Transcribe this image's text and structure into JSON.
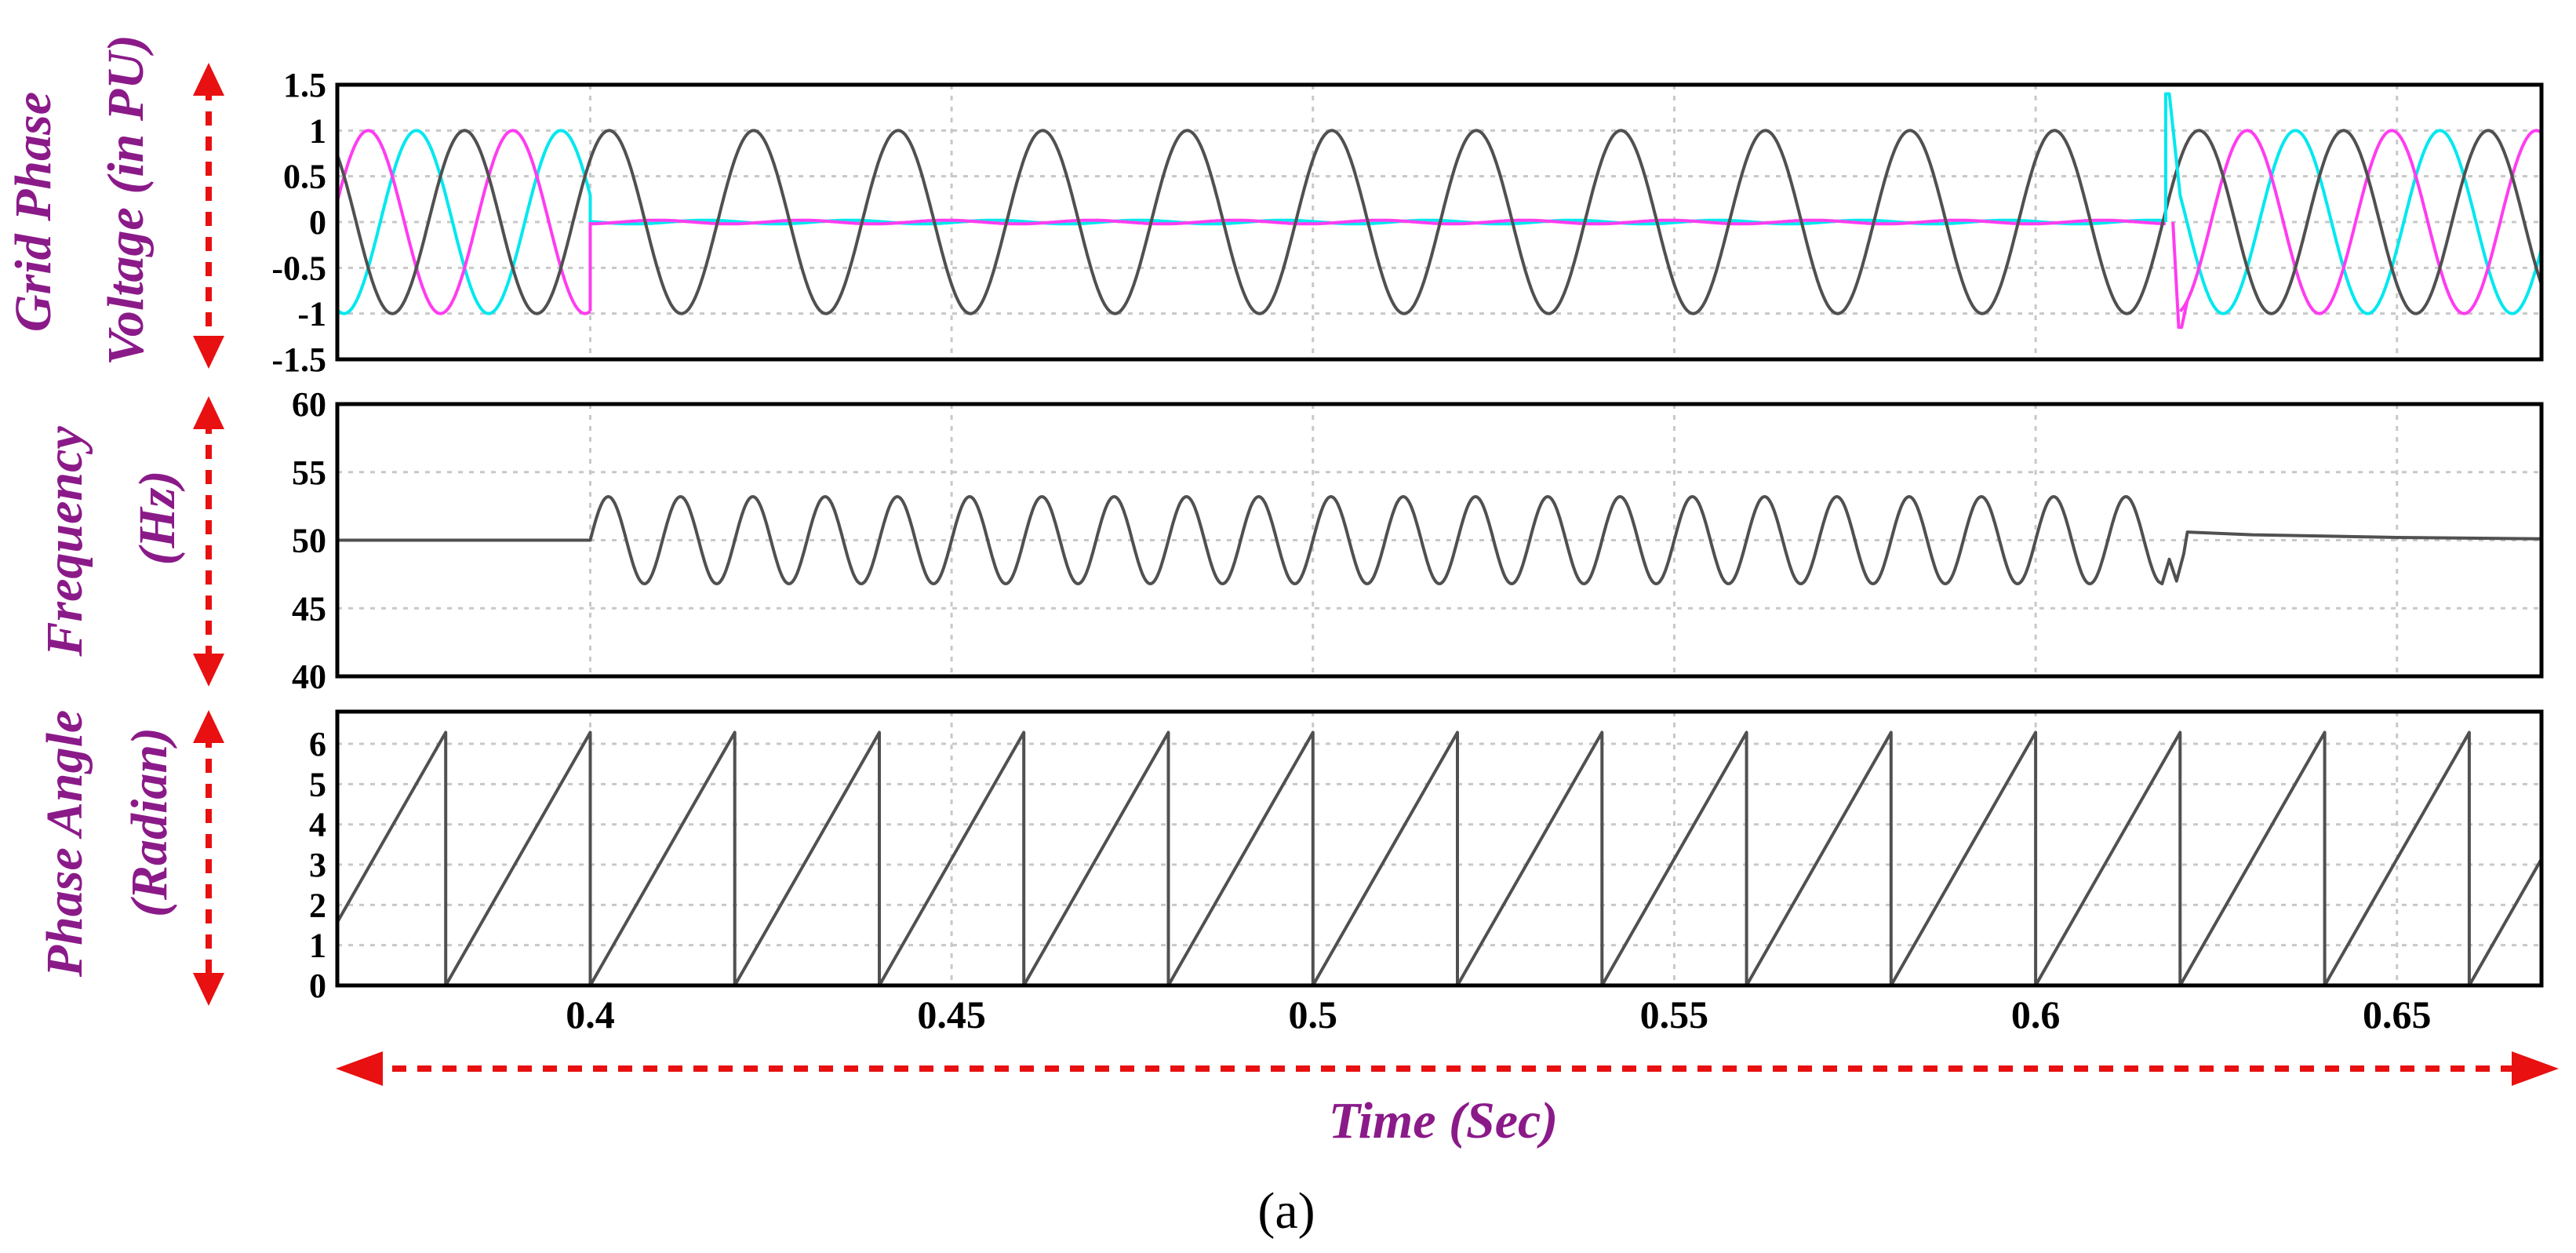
{
  "figure": {
    "caption": "(a)",
    "xlabel": "Time (Sec)",
    "colors": {
      "axis_label": "#8b1a89",
      "arrow": "#e81010",
      "phase_a": "#505050",
      "phase_b": "#ff3cf0",
      "phase_c": "#00e8ef",
      "grid": "#c8c8c8"
    }
  },
  "chart_data": [
    {
      "type": "line",
      "ylabel_lines": [
        "Grid Phase",
        "Voltage (in PU)"
      ],
      "ylim": [
        -1.5,
        1.5
      ],
      "yticks": [
        "1.5",
        "1",
        "0.5",
        "0",
        "-0.5",
        "-1",
        "-1.5"
      ],
      "ytick_values": [
        1.5,
        1,
        0.5,
        0,
        -0.5,
        -1,
        -1.5
      ],
      "xlim": [
        0.365,
        0.67
      ],
      "grid": true,
      "series": [
        {
          "color_key": "phase_a",
          "amplitude": 1.0,
          "frequency_hz": 50,
          "phase_deg": 43,
          "segments": [
            [
              0.365,
              0.67,
              1.0
            ]
          ]
        },
        {
          "color_key": "phase_b",
          "amplitude": 1.0,
          "frequency_hz": 50,
          "phase_deg": -77,
          "segments": [
            [
              0.365,
              0.4,
              1.0
            ],
            [
              0.4,
              0.618,
              0.02
            ],
            [
              0.62,
              0.67,
              1.0
            ]
          ]
        },
        {
          "color_key": "phase_c",
          "amplitude": 1.0,
          "frequency_hz": 50,
          "phase_deg": 163,
          "segments": [
            [
              0.365,
              0.4,
              1.0
            ],
            [
              0.4,
              0.618,
              0.02
            ],
            [
              0.62,
              0.67,
              1.0
            ]
          ]
        }
      ],
      "events": [
        {
          "t": 0.4,
          "description": "Phases B and C collapse to about 0 PU"
        },
        {
          "t": 0.618,
          "description": "Phases B and C restored (spike to 1.4 PU and -1.15 PU)"
        }
      ]
    },
    {
      "type": "line",
      "ylabel_lines": [
        "Frequency",
        "(Hz)"
      ],
      "ylim": [
        40,
        60
      ],
      "yticks": [
        "60",
        "55",
        "50",
        "45",
        "40"
      ],
      "ytick_values": [
        60,
        55,
        50,
        45,
        40
      ],
      "xlim": [
        0.365,
        0.67
      ],
      "grid": true,
      "series": [
        {
          "color_key": "phase_a",
          "points": [
            [
              0.365,
              50
            ],
            [
              0.4,
              50
            ],
            [
              0.4,
              50
            ],
            [
              0.618,
              50
            ],
            [
              0.621,
              50.6
            ],
            [
              0.63,
              50.4
            ],
            [
              0.64,
              50.3
            ],
            [
              0.65,
              50.2
            ],
            [
              0.67,
              50.1
            ]
          ],
          "oscillation": {
            "from": 0.4,
            "to": 0.617,
            "center": 50,
            "amplitude": 3.2,
            "frequency_hz": 100
          }
        }
      ]
    },
    {
      "type": "line",
      "ylabel_lines": [
        "Phase Angle",
        "(Radian)"
      ],
      "ylim": [
        0,
        6.8
      ],
      "yticks": [
        "6",
        "5",
        "4",
        "3",
        "2",
        "1",
        "0"
      ],
      "ytick_values": [
        6,
        5,
        4,
        3,
        2,
        1,
        0
      ],
      "xlim": [
        0.365,
        0.67
      ],
      "grid": true,
      "series": [
        {
          "color_key": "phase_a",
          "sawtooth": {
            "period_s": 0.02,
            "max": 6.2832,
            "reset_times": [
              0.38,
              0.4,
              0.42,
              0.44,
              0.46,
              0.48,
              0.5,
              0.52,
              0.54,
              0.56,
              0.58,
              0.6,
              0.62,
              0.64,
              0.66
            ]
          }
        }
      ]
    }
  ],
  "xaxis": {
    "ticks": [
      "0.4",
      "0.45",
      "0.5",
      "0.55",
      "0.6",
      "0.65"
    ],
    "tick_values": [
      0.4,
      0.45,
      0.5,
      0.55,
      0.6,
      0.65
    ]
  }
}
